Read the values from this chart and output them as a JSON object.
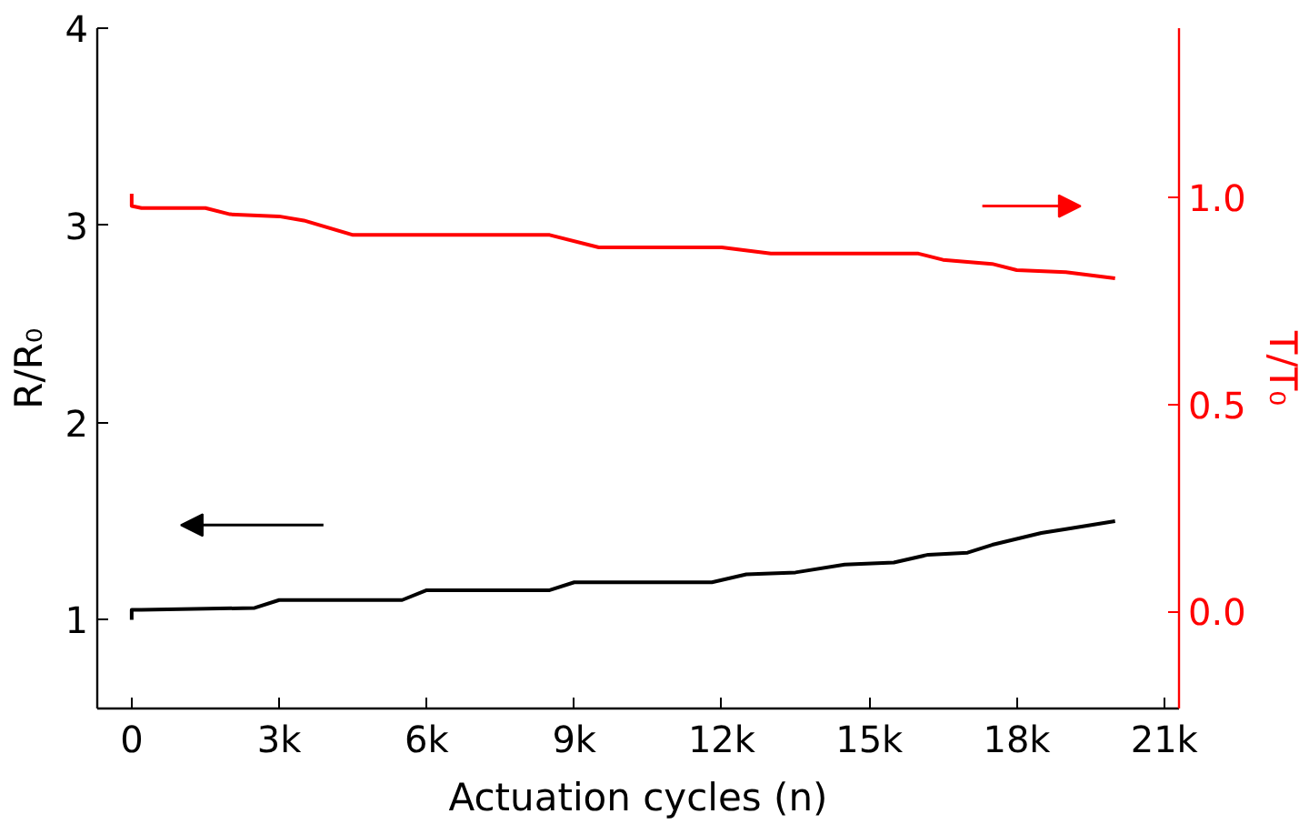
{
  "chart_data": {
    "type": "line",
    "xlabel": "Actuation cycles (n)",
    "ylabel": "R/R₀",
    "y2label": "T/T₀",
    "xlim": [
      -700,
      21300
    ],
    "xticks": [
      {
        "value": 0,
        "label": "0"
      },
      {
        "value": 3000,
        "label": "3k"
      },
      {
        "value": 6000,
        "label": "6k"
      },
      {
        "value": 9000,
        "label": "9k"
      },
      {
        "value": 12000,
        "label": "12k"
      },
      {
        "value": 15000,
        "label": "15k"
      },
      {
        "value": 18000,
        "label": "18k"
      },
      {
        "value": 21000,
        "label": "21k"
      }
    ],
    "ylim": [
      0.55,
      4.0
    ],
    "yticks": [
      1,
      2,
      3,
      4
    ],
    "y2lim": [
      -0.235,
      1.41
    ],
    "y2ticks": [
      {
        "value": 0,
        "label": "0.0"
      },
      {
        "value": 0.5,
        "label": "0.5"
      },
      {
        "value": 1,
        "label": "1.0"
      }
    ],
    "grid": false,
    "line_style": "solid",
    "series": [
      {
        "color": "#000000",
        "x": [
          0,
          0,
          200,
          2500,
          3000,
          5500,
          6000,
          8500,
          9000,
          11800,
          12500,
          13500,
          14500,
          15500,
          16200,
          17000,
          17500,
          18000,
          18500,
          19000,
          20000
        ],
        "values": [
          1.0,
          1.05,
          1.05,
          1.06,
          1.1,
          1.1,
          1.15,
          1.15,
          1.19,
          1.19,
          1.23,
          1.24,
          1.28,
          1.29,
          1.33,
          1.34,
          1.38,
          1.41,
          1.44,
          1.46,
          1.5
        ]
      },
      {
        "color": "#ff0000",
        "axis": "y2",
        "x": [
          0,
          0,
          200,
          1500,
          2000,
          3000,
          3500,
          4500,
          8500,
          9500,
          12000,
          13000,
          16000,
          16500,
          17500,
          18000,
          19000,
          20000
        ],
        "values": [
          1.01,
          0.98,
          0.975,
          0.975,
          0.96,
          0.955,
          0.945,
          0.91,
          0.91,
          0.88,
          0.88,
          0.865,
          0.865,
          0.85,
          0.84,
          0.825,
          0.82,
          0.805
        ]
      }
    ]
  }
}
